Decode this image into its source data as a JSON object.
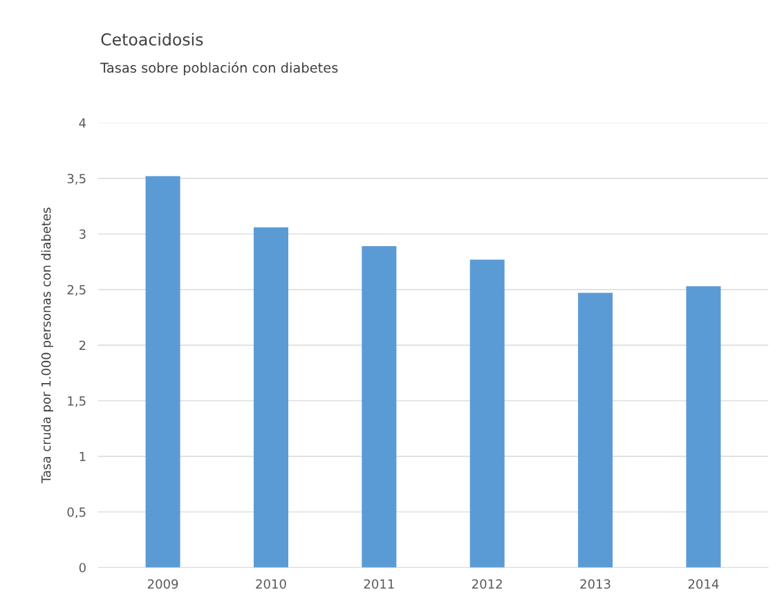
{
  "chart_data": {
    "type": "bar",
    "title": "Cetoacidosis",
    "subtitle": "Tasas sobre población con diabetes",
    "ylabel": "Tasa cruda por 1.000 personas con diabetes",
    "categories": [
      "2009",
      "2010",
      "2011",
      "2012",
      "2013",
      "2014"
    ],
    "values": [
      3.52,
      3.06,
      2.89,
      2.77,
      2.47,
      2.53
    ],
    "color": "#5b9bd5",
    "ylim": [
      0,
      4
    ],
    "yticks": [
      0,
      {
        "value": 0.5,
        "label": "0,5"
      },
      1,
      {
        "value": 1.5,
        "label": "1,5"
      },
      2,
      {
        "value": 2.5,
        "label": "2,5"
      },
      3,
      {
        "value": 3.5,
        "label": "3,5"
      },
      4
    ],
    "grid": "y",
    "legend": false
  }
}
